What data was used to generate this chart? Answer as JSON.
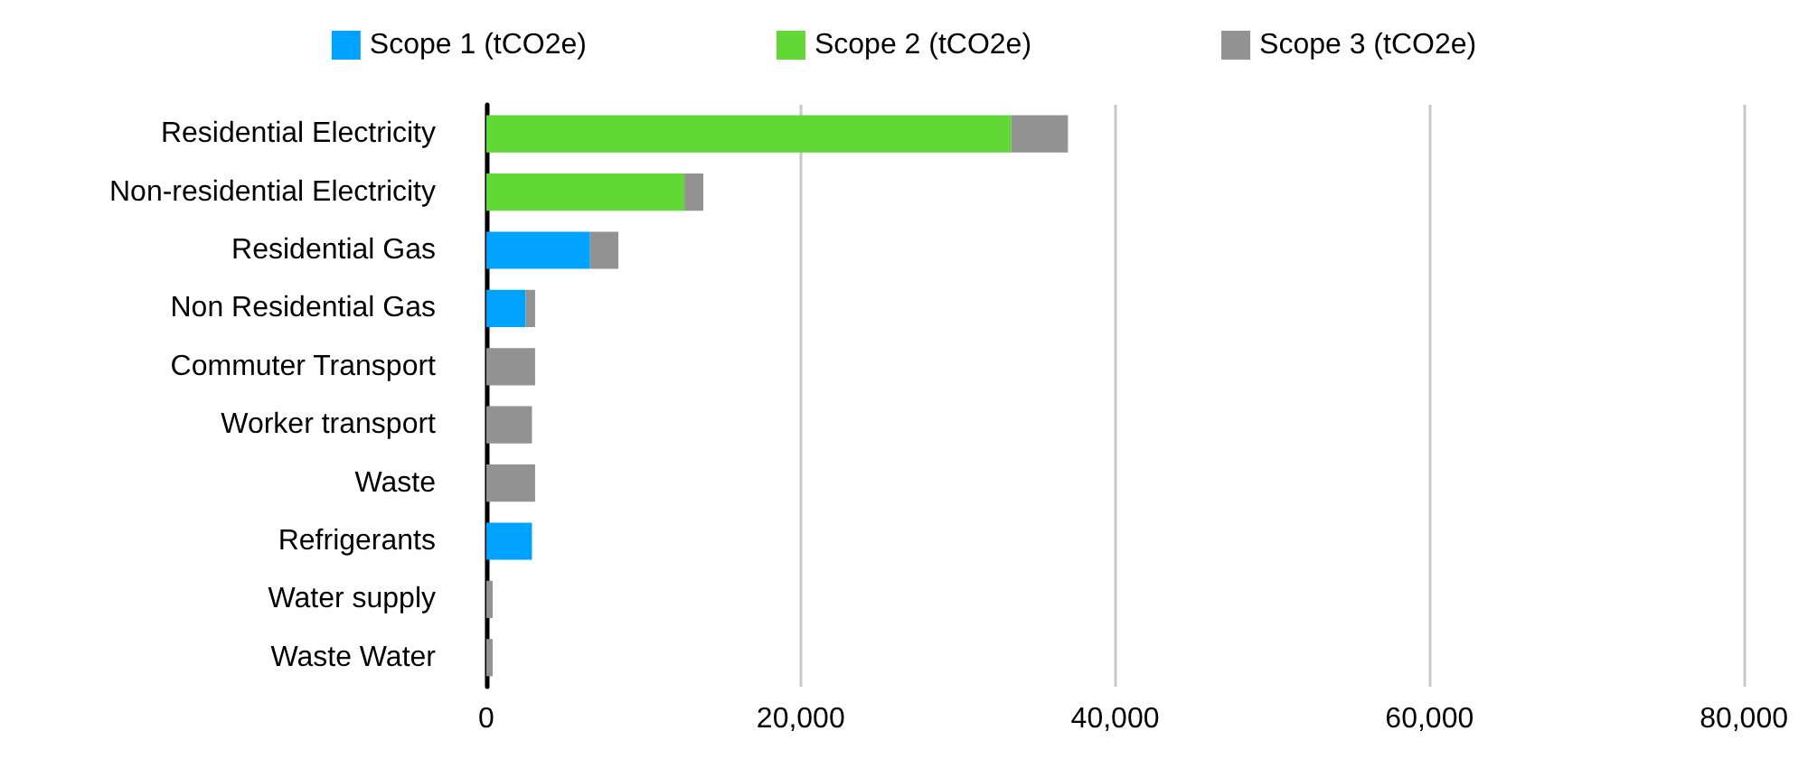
{
  "chart_data": {
    "type": "bar",
    "orientation": "horizontal",
    "stacked": true,
    "categories": [
      "Residential Electricity",
      "Non-residential Electricity",
      "Residential Gas",
      "Non Residential Gas",
      "Commuter Transport",
      "Worker transport",
      "Waste",
      "Refrigerants",
      "Water supply",
      "Waste Water"
    ],
    "series": [
      {
        "name": "Scope 1 (tCO2e)",
        "color": "#00a2ff",
        "values": [
          0,
          0,
          6600,
          2500,
          0,
          0,
          0,
          2900,
          0,
          0
        ]
      },
      {
        "name": "Scope 2 (tCO2e)",
        "color": "#61d836",
        "values": [
          33400,
          12600,
          0,
          0,
          0,
          0,
          0,
          0,
          0,
          0
        ]
      },
      {
        "name": "Scope 3 (tCO2e)",
        "color": "#929292",
        "values": [
          3600,
          1200,
          1800,
          600,
          3100,
          2900,
          3100,
          0,
          400,
          400
        ]
      }
    ],
    "xlim": [
      0,
      80000
    ],
    "xticks": [
      {
        "value": 0,
        "label": "0"
      },
      {
        "value": 20000,
        "label": "20,000"
      },
      {
        "value": 40000,
        "label": "40,000"
      },
      {
        "value": 60000,
        "label": "60,000"
      },
      {
        "value": 80000,
        "label": "80,000"
      }
    ],
    "grid": "x",
    "legend": "top"
  }
}
